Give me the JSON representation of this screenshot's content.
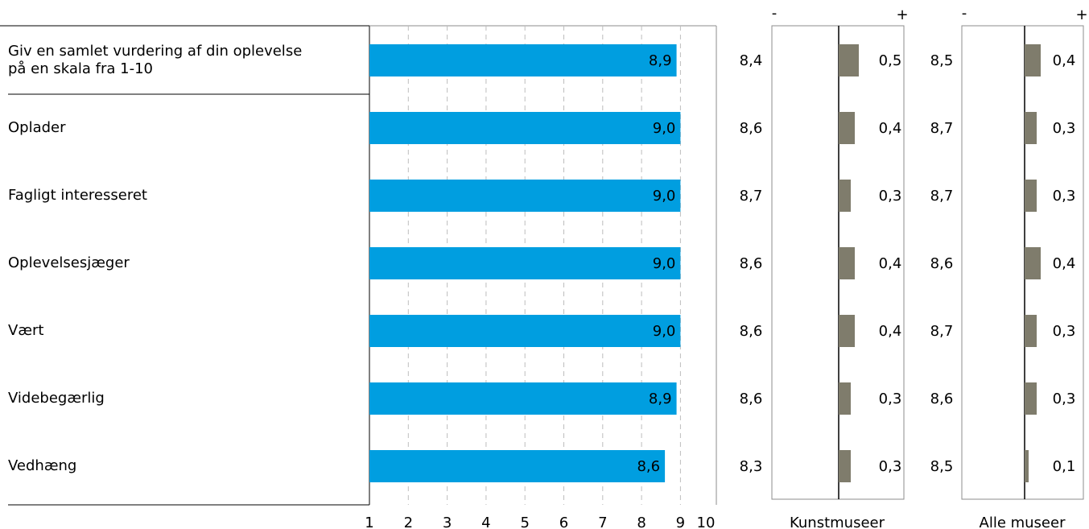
{
  "chart_data": {
    "type": "bar",
    "categories": [
      [
        "Giv en samlet vurdering af din oplevelse",
        "på en skala fra 1-10"
      ],
      [
        "Oplader"
      ],
      [
        "Fagligt interesseret"
      ],
      [
        "Oplevelsesjæger"
      ],
      [
        "Vært"
      ],
      [
        "Videbegærlig"
      ],
      [
        "Vedhæng"
      ]
    ],
    "values": [
      8.9,
      9.0,
      9.0,
      9.0,
      9.0,
      8.9,
      8.6
    ],
    "value_labels": [
      "8,9",
      "9,0",
      "9,0",
      "9,0",
      "9,0",
      "8,9",
      "8,6"
    ],
    "xlim": [
      1,
      10
    ],
    "x_ticks": [
      "1",
      "2",
      "3",
      "4",
      "5",
      "6",
      "7",
      "8",
      "9",
      "10"
    ],
    "bar_color": "#009ee0",
    "grid": "dashed vertical",
    "comparisons": [
      {
        "label": "Kunstmuseer",
        "minus_label": "-",
        "plus_label": "+",
        "benchmark_values": [
          8.4,
          8.6,
          8.7,
          8.6,
          8.6,
          8.6,
          8.3
        ],
        "benchmark_labels": [
          "8,4",
          "8,6",
          "8,7",
          "8,6",
          "8,6",
          "8,6",
          "8,3"
        ],
        "differences": [
          0.5,
          0.4,
          0.3,
          0.4,
          0.4,
          0.3,
          0.3
        ],
        "difference_labels": [
          "0,5",
          "0,4",
          "0,3",
          "0,4",
          "0,4",
          "0,3",
          "0,3"
        ]
      },
      {
        "label": "Alle museer",
        "minus_label": "-",
        "plus_label": "+",
        "benchmark_values": [
          8.5,
          8.7,
          8.7,
          8.6,
          8.7,
          8.6,
          8.5
        ],
        "benchmark_labels": [
          "8,5",
          "8,7",
          "8,7",
          "8,6",
          "8,7",
          "8,6",
          "8,5"
        ],
        "differences": [
          0.4,
          0.3,
          0.3,
          0.4,
          0.3,
          0.3,
          0.1
        ],
        "difference_labels": [
          "0,4",
          "0,3",
          "0,3",
          "0,4",
          "0,3",
          "0,3",
          "0,1"
        ]
      }
    ],
    "difference_bar_color": "#7f7c6c",
    "difference_scale_max": 0.5
  }
}
